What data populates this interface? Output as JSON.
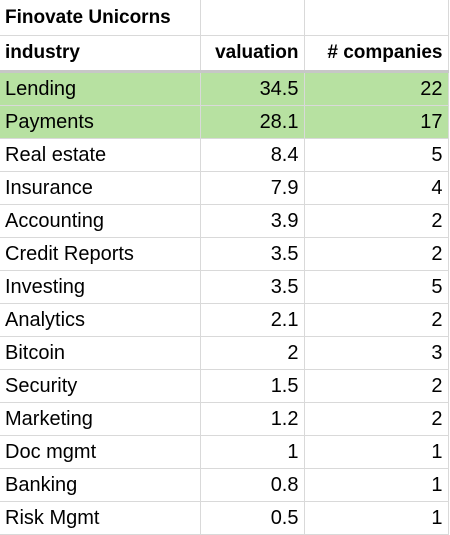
{
  "sheet": {
    "title": "Finovate Unicorns",
    "headers": {
      "industry": "industry",
      "valuation": "valuation",
      "companies": "# companies"
    },
    "highlight_color": "#b7e1a1",
    "rows": [
      {
        "industry": "Lending",
        "valuation": "34.5",
        "companies": "22",
        "highlighted": true
      },
      {
        "industry": "Payments",
        "valuation": "28.1",
        "companies": "17",
        "highlighted": true
      },
      {
        "industry": "Real estate",
        "valuation": "8.4",
        "companies": "5",
        "highlighted": false
      },
      {
        "industry": "Insurance",
        "valuation": "7.9",
        "companies": "4",
        "highlighted": false
      },
      {
        "industry": "Accounting",
        "valuation": "3.9",
        "companies": "2",
        "highlighted": false
      },
      {
        "industry": "Credit Reports",
        "valuation": "3.5",
        "companies": "2",
        "highlighted": false
      },
      {
        "industry": "Investing",
        "valuation": "3.5",
        "companies": "5",
        "highlighted": false
      },
      {
        "industry": "Analytics",
        "valuation": "2.1",
        "companies": "2",
        "highlighted": false
      },
      {
        "industry": "Bitcoin",
        "valuation": "2",
        "companies": "3",
        "highlighted": false
      },
      {
        "industry": "Security",
        "valuation": "1.5",
        "companies": "2",
        "highlighted": false
      },
      {
        "industry": "Marketing",
        "valuation": "1.2",
        "companies": "2",
        "highlighted": false
      },
      {
        "industry": "Doc mgmt",
        "valuation": "1",
        "companies": "1",
        "highlighted": false
      },
      {
        "industry": "Banking",
        "valuation": "0.8",
        "companies": "1",
        "highlighted": false
      },
      {
        "industry": "Risk Mgmt",
        "valuation": "0.5",
        "companies": "1",
        "highlighted": false
      }
    ]
  }
}
